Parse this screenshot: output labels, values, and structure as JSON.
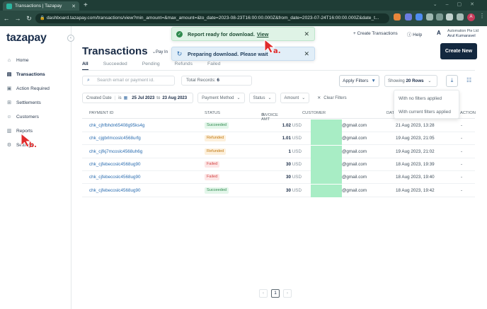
{
  "browser": {
    "tab_title": "Transactions | Tazapay",
    "new_tab": "+",
    "url": "dashboard.tazapay.com/transactions/view?min_amount=&max_amount=&to_date=2023-08-23T16:00:00.000Z&from_date=2023-07-24T16:00:00.000Z&date_t...",
    "profile_initial": "A"
  },
  "sidebar": {
    "logo": "tazapay",
    "items": [
      {
        "label": "Home",
        "icon": "home-icon"
      },
      {
        "label": "Transactions",
        "icon": "transactions-icon"
      },
      {
        "label": "Action Required",
        "icon": "action-icon"
      },
      {
        "label": "Settlements",
        "icon": "settlements-icon"
      },
      {
        "label": "Customers",
        "icon": "customers-icon"
      },
      {
        "label": "Reports",
        "icon": "reports-icon"
      },
      {
        "label": "Settings",
        "icon": "gear-icon"
      }
    ]
  },
  "header": {
    "title": "Transactions",
    "pay_in": "Pay In",
    "create_transactions": "Create Transactions",
    "help": "Help",
    "account_initial": "A",
    "account_company": "Automation Pte Ltd",
    "account_user": "Arul Kumaravel",
    "create_new": "Create New"
  },
  "tabs": [
    "All",
    "Succeeded",
    "Pending",
    "Refunds",
    "Failed"
  ],
  "toolbar": {
    "search_placeholder": "Search email or payment id.",
    "total_records_label": "Total Records:",
    "total_records_value": "6",
    "apply_filters": "Apply Filters",
    "showing_label": "Showing",
    "showing_value": "20 Rows"
  },
  "filters": {
    "created_date_label": "Created Date",
    "is": "is",
    "from": "25 Jul 2023",
    "to_word": "to",
    "to": "23 Aug 2023",
    "payment_method": "Payment Method",
    "status": "Status",
    "amount": "Amount",
    "clear": "Clear Filters"
  },
  "download_menu": {
    "options": [
      "With no filters applied",
      "With current filters applied"
    ]
  },
  "table": {
    "columns": [
      "PAYMENT ID",
      "STATUS",
      "INVOICE AMT",
      "CUSTOMER",
      "DATE",
      "ACTION"
    ],
    "rows": [
      {
        "id": "chk_cjhfbhdn65408g95ks4g",
        "status": "Succeeded",
        "status_class": "st-succeeded",
        "amount": "1.02",
        "currency": "USD",
        "email": "@gmail.com",
        "date": "21 Aug 2023, 13:28",
        "action": "-"
      },
      {
        "id": "chk_cjgbrlmcoslc4568urfg",
        "status": "Refunded",
        "status_class": "st-refunded",
        "amount": "1.01",
        "currency": "USD",
        "email": "@gmail.com",
        "date": "19 Aug 2023, 21:05",
        "action": "-"
      },
      {
        "id": "chk_cjfkj7mcoslc4568uh6g",
        "status": "Refunded",
        "status_class": "st-refunded",
        "amount": "1",
        "currency": "USD",
        "email": "@gmail.com",
        "date": "19 Aug 2023, 21:02",
        "action": "-"
      },
      {
        "id": "chk_cjfebecoslc4568ug90",
        "status": "Failed",
        "status_class": "st-failed",
        "amount": "30",
        "currency": "USD",
        "email": "@gmail.com",
        "date": "18 Aug 2023, 19:39",
        "action": "-"
      },
      {
        "id": "chk_cjfebecoslc4568ug90",
        "status": "Failed",
        "status_class": "st-failed",
        "amount": "30",
        "currency": "USD",
        "email": "@gmail.com",
        "date": "18 Aug 2023, 19:40",
        "action": "-"
      },
      {
        "id": "chk_cjfebecoslc4568ug90",
        "status": "Succeeded",
        "status_class": "st-succeeded",
        "amount": "30",
        "currency": "USD",
        "email": "@gmail.com",
        "date": "18 Aug 2023, 19:42",
        "action": "-"
      }
    ]
  },
  "pagination": {
    "prev": "‹",
    "current": "1",
    "next": "›"
  },
  "toasts": {
    "ready_text": "Report ready for download.",
    "ready_link": "View",
    "preparing_text": "Preparing download. Please wait"
  },
  "annotations": {
    "a": "a.",
    "b": "b."
  },
  "colors": {
    "brand_dark": "#13283f",
    "success": "#2f8a4e",
    "refunded": "#c27a12",
    "failed": "#d24545",
    "customer_mask": "#a8edc5",
    "annotation": "#e02b2b"
  }
}
